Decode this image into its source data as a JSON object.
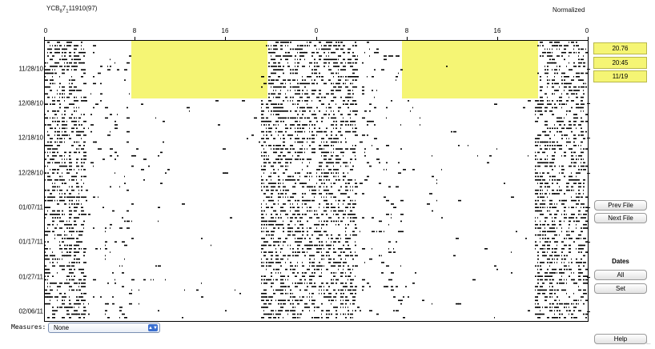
{
  "header": {
    "title_prefix": "YCB",
    "title_sub1": "8",
    "title_mid": "7",
    "title_sub2": "1",
    "title_suffix": "11910(97)",
    "mode": "Normalized"
  },
  "top_axis_labels": [
    "0",
    "8",
    "16",
    "0",
    "8",
    "16",
    "0"
  ],
  "date_labels": [
    "11/28/10",
    "12/08/10",
    "12/18/10",
    "12/28/10",
    "01/07/11",
    "01/17/11",
    "01/27/11",
    "02/06/11"
  ],
  "info": {
    "period": "20.76",
    "time": "20:45",
    "date": "11/19"
  },
  "buttons": {
    "prev_file": "Prev File",
    "next_file": "Next File",
    "dates_label": "Dates",
    "all": "All",
    "set": "Set",
    "help": "Help"
  },
  "measures": {
    "label": "Measures:",
    "selected": "None"
  },
  "colors": {
    "highlight": "#f5f574",
    "activity": "#000000",
    "select_spinner": "#3b6fd0"
  }
}
